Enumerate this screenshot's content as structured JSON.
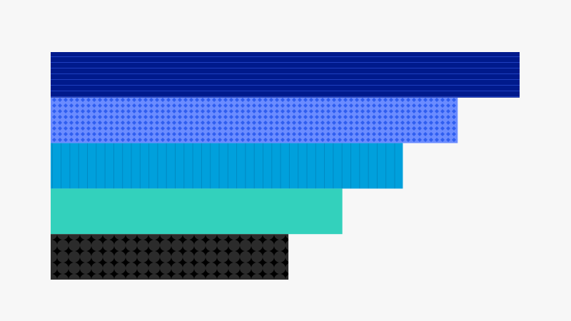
{
  "chart_data": {
    "type": "bar",
    "orientation": "horizontal",
    "title": "",
    "xlabel": "",
    "ylabel": "",
    "xlim": [
      0,
      100
    ],
    "grid": false,
    "legend": "none",
    "categories": [
      "",
      "",
      "",
      "",
      ""
    ],
    "values": [
      100,
      86.8,
      75.1,
      62.2,
      50.7
    ],
    "colors": [
      "#001a8c",
      "#6b8cff",
      "#00a0dc",
      "#33d1bc",
      "#000000"
    ],
    "patterns": [
      "horizontal-lines",
      "dots",
      "vertical-lines",
      "none",
      "circles"
    ]
  }
}
